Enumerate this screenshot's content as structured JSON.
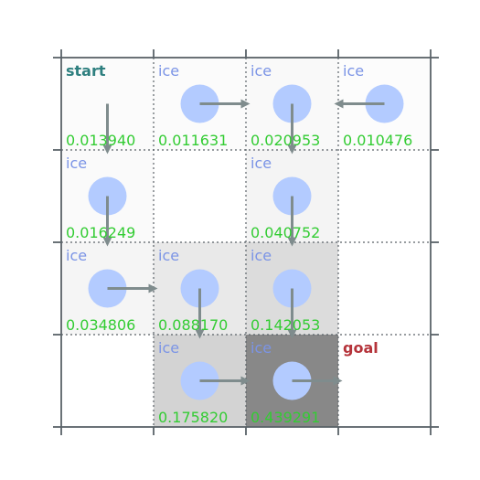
{
  "board": {
    "rows": 4,
    "cols": 4,
    "colors": {
      "label_ice": "#7b94e6",
      "label_start": "#2e7f7f",
      "label_goal": "#b5333a",
      "value": "#33cc33",
      "agent_circle": "#b3cbff",
      "arrow": "#7f8c8d",
      "grid_line": "#5a6268"
    },
    "cells": [
      {
        "row": 0,
        "col": 0,
        "label": "start",
        "label_kind": "start",
        "value": "0.013940",
        "fill": "#fbfbfb",
        "agent": false,
        "arrow": "down"
      },
      {
        "row": 0,
        "col": 1,
        "label": "ice",
        "label_kind": "ice",
        "value": "0.011631",
        "fill": "#fbfbfb",
        "agent": true,
        "arrow": "right"
      },
      {
        "row": 0,
        "col": 2,
        "label": "ice",
        "label_kind": "ice",
        "value": "0.020953",
        "fill": "#f9f9f9",
        "agent": true,
        "arrow": "down"
      },
      {
        "row": 0,
        "col": 3,
        "label": "ice",
        "label_kind": "ice",
        "value": "0.010476",
        "fill": "#fcfcfc",
        "agent": true,
        "arrow": "left"
      },
      {
        "row": 1,
        "col": 0,
        "label": "ice",
        "label_kind": "ice",
        "value": "0.016249",
        "fill": "#fafafa",
        "agent": true,
        "arrow": "down"
      },
      {
        "row": 1,
        "col": 1,
        "label": "",
        "label_kind": "hole",
        "value": "",
        "fill": "#ffffff",
        "agent": false,
        "arrow": ""
      },
      {
        "row": 1,
        "col": 2,
        "label": "ice",
        "label_kind": "ice",
        "value": "0.040752",
        "fill": "#f4f4f4",
        "agent": true,
        "arrow": "down"
      },
      {
        "row": 1,
        "col": 3,
        "label": "",
        "label_kind": "hole",
        "value": "",
        "fill": "#ffffff",
        "agent": false,
        "arrow": ""
      },
      {
        "row": 2,
        "col": 0,
        "label": "ice",
        "label_kind": "ice",
        "value": "0.034806",
        "fill": "#f5f5f5",
        "agent": true,
        "arrow": "right"
      },
      {
        "row": 2,
        "col": 1,
        "label": "ice",
        "label_kind": "ice",
        "value": "0.088170",
        "fill": "#e9e9e9",
        "agent": true,
        "arrow": "down"
      },
      {
        "row": 2,
        "col": 2,
        "label": "ice",
        "label_kind": "ice",
        "value": "0.142053",
        "fill": "#dcdcdc",
        "agent": true,
        "arrow": "down"
      },
      {
        "row": 2,
        "col": 3,
        "label": "",
        "label_kind": "hole",
        "value": "",
        "fill": "#ffffff",
        "agent": false,
        "arrow": ""
      },
      {
        "row": 3,
        "col": 0,
        "label": "",
        "label_kind": "hole",
        "value": "",
        "fill": "#ffffff",
        "agent": false,
        "arrow": ""
      },
      {
        "row": 3,
        "col": 1,
        "label": "ice",
        "label_kind": "ice",
        "value": "0.175820",
        "fill": "#d3d3d3",
        "agent": true,
        "arrow": "right"
      },
      {
        "row": 3,
        "col": 2,
        "label": "ice",
        "label_kind": "ice",
        "value": "0.439291",
        "fill": "#888888",
        "agent": true,
        "arrow": "right"
      },
      {
        "row": 3,
        "col": 3,
        "label": "goal",
        "label_kind": "goal",
        "value": "",
        "fill": "#ffffff",
        "agent": false,
        "arrow": ""
      }
    ]
  }
}
